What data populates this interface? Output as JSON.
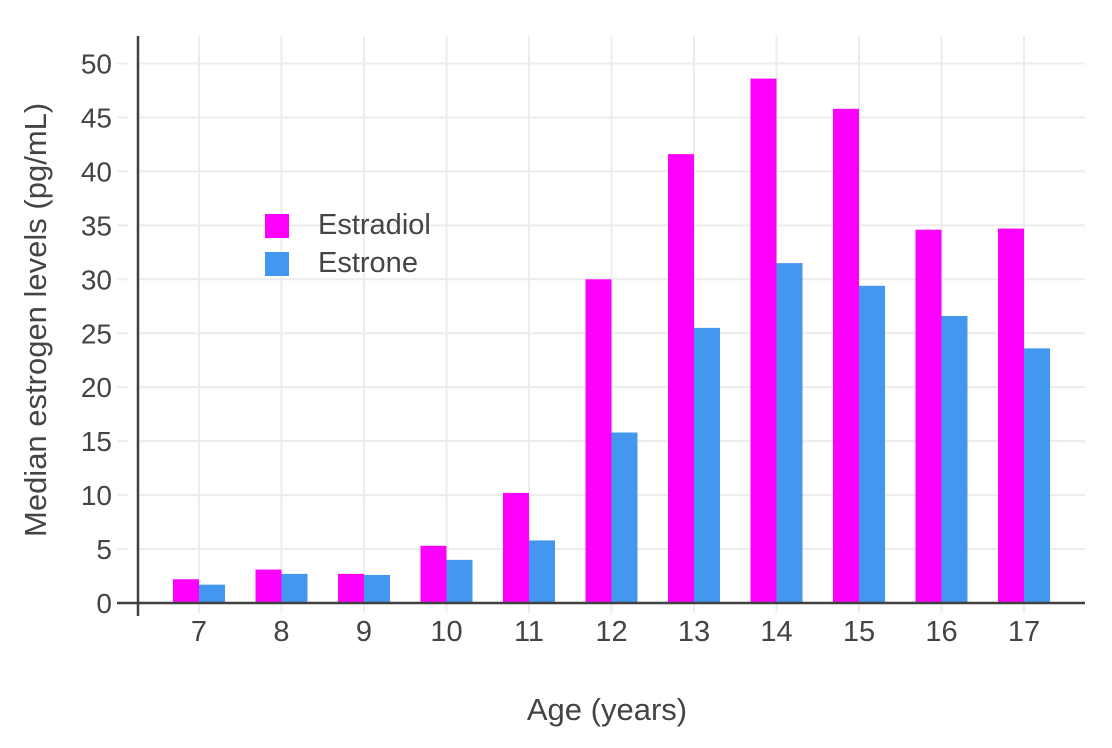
{
  "page": {
    "background": "#ffffff"
  },
  "legend": {
    "items": [
      {
        "label": "Estradiol",
        "color": "#ff00ff"
      },
      {
        "label": "Estrone",
        "color": "#4497ee"
      }
    ]
  },
  "axes": {
    "x_title": "Age (years)",
    "y_title": "Median estrogen levels (pg/mL)"
  },
  "chart_data": {
    "type": "bar",
    "title": "",
    "xlabel": "Age (years)",
    "ylabel": "Median estrogen levels (pg/mL)",
    "categories": [
      "7",
      "8",
      "9",
      "10",
      "11",
      "12",
      "13",
      "14",
      "15",
      "16",
      "17"
    ],
    "series": [
      {
        "name": "Estradiol",
        "color": "#ff00ff",
        "values": [
          2.2,
          3.1,
          2.7,
          5.3,
          10.2,
          30.0,
          41.6,
          48.6,
          45.8,
          34.6,
          34.7
        ]
      },
      {
        "name": "Estrone",
        "color": "#4497ee",
        "values": [
          1.7,
          2.7,
          2.6,
          4.0,
          5.8,
          15.8,
          25.5,
          31.5,
          29.4,
          26.6,
          23.6
        ]
      }
    ],
    "ylim": [
      0,
      52.5
    ],
    "yticks": [
      0,
      5,
      10,
      15,
      20,
      25,
      30,
      35,
      40,
      45,
      50
    ],
    "ytick_step": 5,
    "grid": true,
    "legend_position": "inside upper-left",
    "colors": {
      "grid": "#ececec",
      "axis_line": "#404040",
      "tick_text": "#444444"
    }
  }
}
